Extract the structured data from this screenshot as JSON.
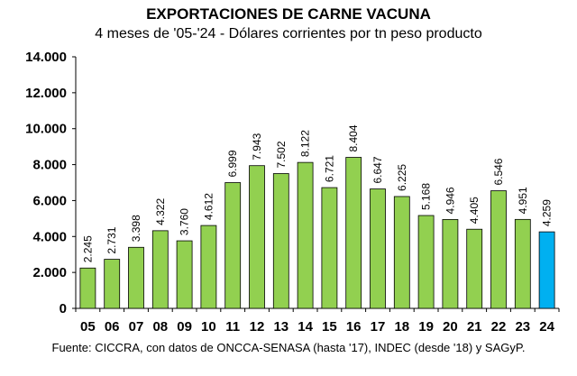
{
  "chart_data": {
    "type": "bar",
    "title": "EXPORTACIONES DE CARNE VACUNA",
    "subtitle": "4 meses de '05-'24 - Dólares corrientes por tn peso producto",
    "source": "Fuente: CICCRA, con datos de ONCCA-SENASA (hasta '17), INDEC (desde '18) y SAGyP.",
    "categories": [
      "05",
      "06",
      "07",
      "08",
      "09",
      "10",
      "11",
      "12",
      "13",
      "14",
      "15",
      "16",
      "17",
      "18",
      "19",
      "20",
      "21",
      "22",
      "23",
      "24"
    ],
    "values": [
      2245,
      2731,
      3398,
      4322,
      3760,
      4612,
      6999,
      7943,
      7502,
      8122,
      6721,
      8404,
      6647,
      6225,
      5168,
      4946,
      4405,
      6546,
      4951,
      4259
    ],
    "value_labels": [
      "2.245",
      "2.731",
      "3.398",
      "4.322",
      "3.760",
      "4.612",
      "6.999",
      "7.943",
      "7.502",
      "8.122",
      "6.721",
      "8.404",
      "6.647",
      "6.225",
      "5.168",
      "4.946",
      "4.405",
      "6.546",
      "4.951",
      "4.259"
    ],
    "ylim": [
      0,
      14000
    ],
    "yticks": [
      0,
      2000,
      4000,
      6000,
      8000,
      10000,
      12000,
      14000
    ],
    "ytick_labels": [
      "0",
      "2.000",
      "4.000",
      "6.000",
      "8.000",
      "10.000",
      "12.000",
      "14.000"
    ],
    "grid": false,
    "colors": {
      "bar": "#92d050",
      "highlight": "#00b0f0",
      "outline": "#000000"
    },
    "highlight_category": "24"
  }
}
